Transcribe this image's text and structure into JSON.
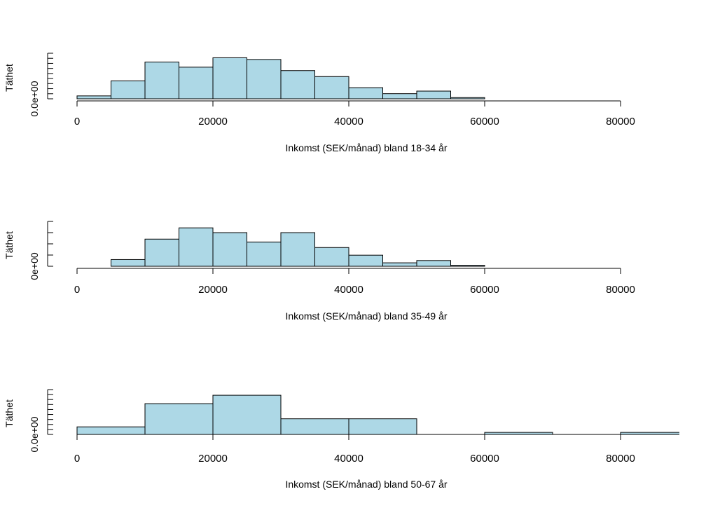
{
  "chart_data": [
    {
      "type": "bar",
      "subtype": "histogram",
      "xlabel": "Inkomst (SEK/månad) bland 18-34 år",
      "ylabel": "Täthet",
      "y_tick_label": "0.0e+00",
      "x_ticks": [
        "0",
        "20000",
        "40000",
        "60000",
        "80000"
      ],
      "x_ticks_values": [
        0,
        20000,
        40000,
        60000,
        80000
      ],
      "bin_width": 5000,
      "bins_start": [
        0,
        5000,
        10000,
        15000,
        20000,
        25000,
        30000,
        35000,
        40000,
        45000,
        50000,
        55000
      ],
      "values": [
        1.7e-06,
        1.05e-05,
        2.15e-05,
        1.85e-05,
        2.4e-05,
        2.3e-05,
        1.65e-05,
        1.3e-05,
        6.5e-06,
        3e-06,
        4.5e-06,
        7e-07
      ],
      "xlim": [
        0,
        88000
      ],
      "ylim": [
        0,
        2.5e-05
      ],
      "bar_color": "#add8e6",
      "grid": false
    },
    {
      "type": "bar",
      "subtype": "histogram",
      "xlabel": "Inkomst (SEK/månad) bland 35-49 år",
      "ylabel": "Täthet",
      "y_tick_label": "0e+00",
      "x_ticks": [
        "0",
        "20000",
        "40000",
        "60000",
        "80000"
      ],
      "x_ticks_values": [
        0,
        20000,
        40000,
        60000,
        80000
      ],
      "bin_width": 5000,
      "bins_start": [
        5000,
        10000,
        15000,
        20000,
        25000,
        30000,
        35000,
        40000,
        45000,
        50000,
        55000
      ],
      "values": [
        3.5e-06,
        1.42e-05,
        2.01e-05,
        1.76e-05,
        1.27e-05,
        1.76e-05,
        9.8e-06,
        5.8e-06,
        1.8e-06,
        3e-06,
        5e-07
      ],
      "xlim": [
        0,
        88000
      ],
      "ylim": [
        0,
        2.2e-05
      ],
      "bar_color": "#add8e6",
      "grid": false
    },
    {
      "type": "bar",
      "subtype": "histogram",
      "xlabel": "Inkomst (SEK/månad) bland 50-67 år",
      "ylabel": "Täthet",
      "y_tick_label": "0.0e+00",
      "x_ticks": [
        "0",
        "20000",
        "40000",
        "60000",
        "80000"
      ],
      "x_ticks_values": [
        0,
        20000,
        40000,
        60000,
        80000
      ],
      "bin_width": 10000,
      "bins_start": [
        0,
        10000,
        20000,
        30000,
        40000,
        50000,
        60000,
        70000,
        80000
      ],
      "values": [
        4.5e-06,
        1.83e-05,
        2.33e-05,
        9.3e-06,
        9.3e-06,
        0,
        1.2e-06,
        0,
        1.2e-06
      ],
      "xlim": [
        0,
        88000
      ],
      "ylim": [
        0,
        2.5e-05
      ],
      "bar_color": "#add8e6",
      "grid": false
    }
  ]
}
